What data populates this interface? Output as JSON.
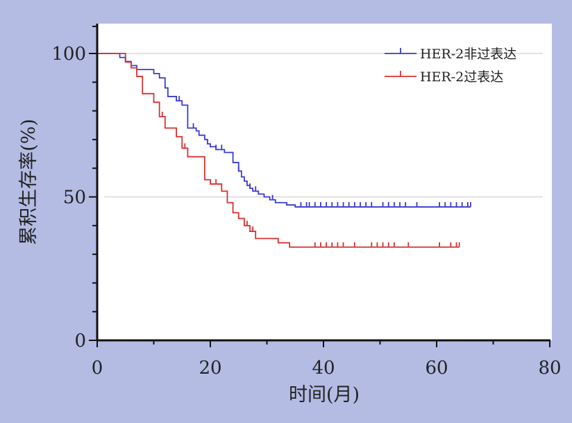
{
  "chart_data": {
    "type": "line",
    "title": "",
    "xlabel": "时间(月)",
    "ylabel": "累积生存率(%)",
    "xlim": [
      0,
      80
    ],
    "ylim": [
      0,
      100
    ],
    "x_ticks": [
      0,
      20,
      40,
      60,
      80
    ],
    "y_ticks": [
      0,
      50,
      100
    ],
    "reference_lines_y": [
      50,
      100
    ],
    "legend": "top-right",
    "series": [
      {
        "name": "HER-2非过表达",
        "color": "#3a3ad0",
        "steps": [
          [
            0,
            100
          ],
          [
            4,
            98.6
          ],
          [
            5,
            97.2
          ],
          [
            6,
            95.8
          ],
          [
            7,
            94.4
          ],
          [
            10,
            93
          ],
          [
            11,
            91.5
          ],
          [
            12,
            88
          ],
          [
            12.5,
            85
          ],
          [
            14,
            83.5
          ],
          [
            15,
            82
          ],
          [
            16,
            74
          ],
          [
            17.5,
            73
          ],
          [
            18,
            71.5
          ],
          [
            19,
            70
          ],
          [
            19.5,
            68.5
          ],
          [
            20,
            67.5
          ],
          [
            21,
            66.5
          ],
          [
            22.5,
            65.5
          ],
          [
            24,
            62
          ],
          [
            25,
            59
          ],
          [
            25.5,
            57
          ],
          [
            26,
            55.5
          ],
          [
            26.5,
            54
          ],
          [
            27,
            53
          ],
          [
            27.5,
            52
          ],
          [
            28.5,
            51
          ],
          [
            29.5,
            50
          ],
          [
            30.5,
            49
          ],
          [
            31.5,
            48
          ],
          [
            33.5,
            47.2
          ],
          [
            35,
            46.5
          ],
          [
            66,
            46.5
          ]
        ],
        "censored_x": [
          5,
          14.5,
          17,
          21,
          22,
          25,
          27,
          28,
          31,
          36,
          37,
          37.5,
          38.5,
          39.5,
          40.5,
          41.5,
          42.5,
          43.5,
          44.5,
          45.5,
          46.5,
          47.5,
          48.5,
          50.5,
          51.5,
          52.5,
          53.5,
          54.5,
          56.5,
          60.5,
          61.5,
          62.5,
          63.5,
          64.5,
          65.5,
          66
        ]
      },
      {
        "name": "HER-2过表达",
        "color": "#d83030",
        "steps": [
          [
            0,
            100
          ],
          [
            5,
            97
          ],
          [
            6,
            95
          ],
          [
            7,
            92
          ],
          [
            8,
            86
          ],
          [
            10,
            83
          ],
          [
            11,
            78
          ],
          [
            12,
            74
          ],
          [
            14,
            71
          ],
          [
            15,
            67
          ],
          [
            16,
            64
          ],
          [
            19,
            56
          ],
          [
            20,
            54.5
          ],
          [
            22,
            52
          ],
          [
            23,
            48
          ],
          [
            24,
            44.5
          ],
          [
            25,
            42.5
          ],
          [
            26,
            40
          ],
          [
            27,
            38
          ],
          [
            28,
            35.5
          ],
          [
            32,
            34
          ],
          [
            34,
            32.5
          ],
          [
            64,
            32.5
          ]
        ],
        "censored_x": [
          11.5,
          15.5,
          21,
          26.5,
          27.5,
          38.5,
          39.5,
          40.5,
          41.5,
          42.5,
          43.5,
          45.5,
          48.5,
          49.5,
          50.5,
          51.5,
          52.5,
          55,
          60.5,
          62.5,
          63.5,
          64
        ]
      }
    ]
  }
}
